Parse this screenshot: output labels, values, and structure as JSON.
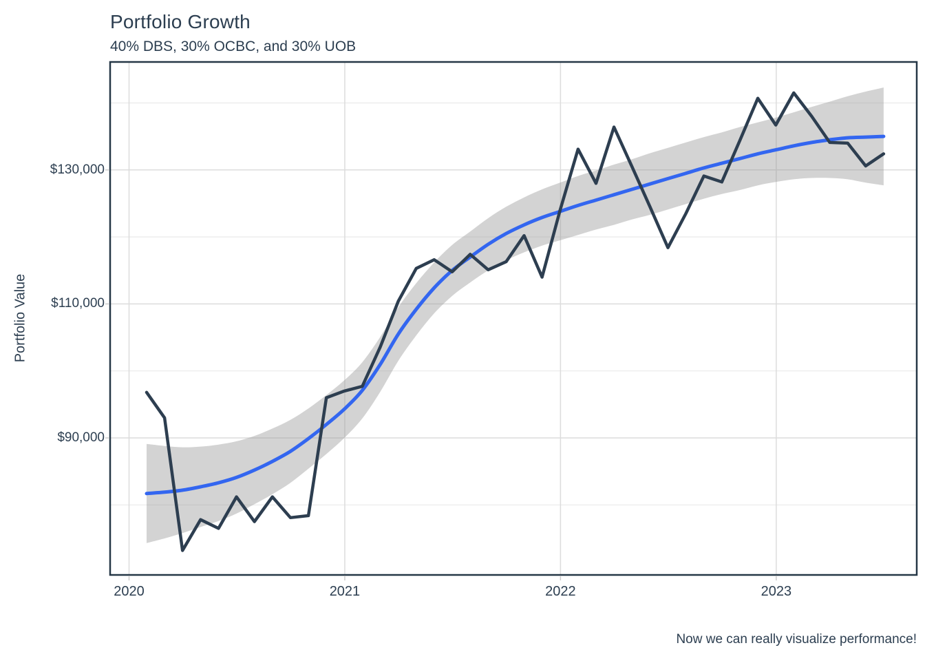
{
  "header": {
    "title": "Portfolio Growth",
    "subtitle": "40% DBS, 30% OCBC, and 30% UOB"
  },
  "caption": "Now we can really visualize performance!",
  "y_axis": {
    "title": "Portfolio Value",
    "major_ticks": [
      {
        "value": 90000,
        "label": "$90,000"
      },
      {
        "value": 110000,
        "label": "$110,000"
      },
      {
        "value": 130000,
        "label": "$130,000"
      }
    ],
    "minor_gridline_values": [
      80000,
      100000,
      120000,
      140000
    ]
  },
  "x_axis": {
    "ticks": [
      {
        "year": 2020,
        "label": "2020"
      },
      {
        "year": 2021,
        "label": "2021"
      },
      {
        "year": 2022,
        "label": "2022"
      },
      {
        "year": 2023,
        "label": "2023"
      }
    ]
  },
  "colors": {
    "text": "#2c3e50",
    "portfolio_line": "#2d3e50",
    "smooth_line": "#3366f0",
    "ribbon": "rgba(150,150,150,0.42)",
    "grid_major": "#dcdcdc",
    "grid_minor": "#eaeaea",
    "panel_border": "#253746",
    "tick_mark": "#cccccc",
    "background": "#ffffff"
  },
  "chart_data": {
    "type": "line",
    "title": "Portfolio Growth",
    "subtitle": "40% DBS, 30% OCBC, and 30% UOB",
    "caption": "Now we can really visualize performance!",
    "xlabel": "",
    "ylabel": "Portfolio Value",
    "x_tick_labels": [
      "2020",
      "2021",
      "2022",
      "2023"
    ],
    "y_tick_labels": [
      "$90,000",
      "$110,000",
      "$130,000"
    ],
    "ylim": [
      69500,
      146100
    ],
    "xlim_months": [
      "2019-11",
      "2023-08"
    ],
    "grid": true,
    "legend": "none",
    "months": [
      "2020-01",
      "2020-02",
      "2020-03",
      "2020-04",
      "2020-05",
      "2020-06",
      "2020-07",
      "2020-08",
      "2020-09",
      "2020-10",
      "2020-11",
      "2020-12",
      "2021-01",
      "2021-02",
      "2021-03",
      "2021-04",
      "2021-05",
      "2021-06",
      "2021-07",
      "2021-08",
      "2021-09",
      "2021-10",
      "2021-11",
      "2021-12",
      "2022-01",
      "2022-02",
      "2022-03",
      "2022-04",
      "2022-05",
      "2022-06",
      "2022-07",
      "2022-08",
      "2022-09",
      "2022-10",
      "2022-11",
      "2022-12",
      "2023-01",
      "2023-02",
      "2023-03",
      "2023-04",
      "2023-05",
      "2023-06"
    ],
    "series": [
      {
        "name": "portfolio_value",
        "style": "jagged",
        "color": "#2d3e50",
        "values": [
          96800,
          93000,
          73200,
          77800,
          76500,
          81200,
          77500,
          81200,
          78100,
          78400,
          96000,
          97000,
          97700,
          103600,
          110400,
          115300,
          116600,
          114800,
          117400,
          115100,
          116300,
          120200,
          114000,
          124000,
          133100,
          128000,
          136400,
          130500,
          124500,
          118400,
          123500,
          129100,
          128200,
          134400,
          140700,
          136700,
          141500,
          138000,
          134100,
          134000,
          130600,
          132400
        ]
      },
      {
        "name": "smoothed_trend",
        "style": "smooth",
        "color": "#3366f0",
        "values": [
          81700,
          81900,
          82200,
          82700,
          83300,
          84100,
          85200,
          86500,
          88000,
          89900,
          92000,
          94300,
          97100,
          101000,
          105500,
          109200,
          112400,
          115000,
          117000,
          118900,
          120500,
          121800,
          122900,
          123800,
          124700,
          125500,
          126300,
          127100,
          127900,
          128700,
          129500,
          130300,
          131000,
          131700,
          132400,
          133000,
          133600,
          134100,
          134500,
          134800,
          134900,
          135000
        ]
      }
    ],
    "confidence_band": {
      "name": "smooth_confidence_band",
      "upper": [
        89100,
        88800,
        88600,
        88700,
        89000,
        89500,
        90300,
        91400,
        92700,
        94400,
        96400,
        98600,
        101300,
        105100,
        109500,
        113100,
        116200,
        118800,
        120800,
        122800,
        124500,
        125900,
        127100,
        128100,
        129100,
        129900,
        130800,
        131600,
        132500,
        133300,
        134100,
        134900,
        135600,
        136400,
        137100,
        137800,
        138600,
        139400,
        140200,
        141000,
        141700,
        142300
      ],
      "lower": [
        74300,
        75000,
        75800,
        76700,
        77600,
        78700,
        80100,
        81600,
        83300,
        85400,
        87600,
        90000,
        92900,
        96900,
        101500,
        105300,
        108600,
        111200,
        113200,
        115000,
        116500,
        117700,
        118700,
        119500,
        120300,
        121100,
        121800,
        122600,
        123300,
        124100,
        124900,
        125700,
        126400,
        127000,
        127700,
        128200,
        128600,
        128800,
        128800,
        128600,
        128100,
        127700
      ]
    }
  }
}
